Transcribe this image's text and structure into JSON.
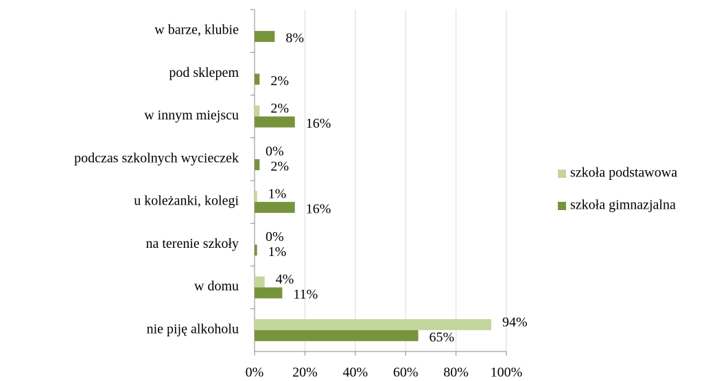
{
  "chart_data": {
    "type": "hbar",
    "categories": [
      "w barze, klubie",
      "pod sklepem",
      "w innym miejscu",
      "podczas szkolnych wycieczek",
      "u koleżanki, kolegi",
      "na terenie szkoły",
      "w domu",
      "nie piję alkoholu"
    ],
    "series": [
      {
        "name": "szkoła podstawowa",
        "color": "#c3d69b",
        "values": [
          null,
          null,
          2,
          0,
          1,
          0,
          4,
          94
        ],
        "value_labels": [
          null,
          null,
          "2%",
          "0%",
          "1%",
          "0%",
          "4%",
          "94%"
        ]
      },
      {
        "name": "szkoła gimnazjalna",
        "color": "#77933c",
        "values": [
          8,
          2,
          16,
          2,
          16,
          1,
          11,
          65
        ],
        "value_labels": [
          "8%",
          "2%",
          "16%",
          "2%",
          "16%",
          "1%",
          "11%",
          "65%"
        ]
      }
    ],
    "xlim": [
      0,
      100
    ],
    "xticks": [
      {
        "value": 0,
        "label": "0%"
      },
      {
        "value": 20,
        "label": "20%"
      },
      {
        "value": 40,
        "label": "40%"
      },
      {
        "value": 60,
        "label": "60%"
      },
      {
        "value": 80,
        "label": "80%"
      },
      {
        "value": 100,
        "label": "100%"
      }
    ],
    "grid": true,
    "legend": "right"
  }
}
